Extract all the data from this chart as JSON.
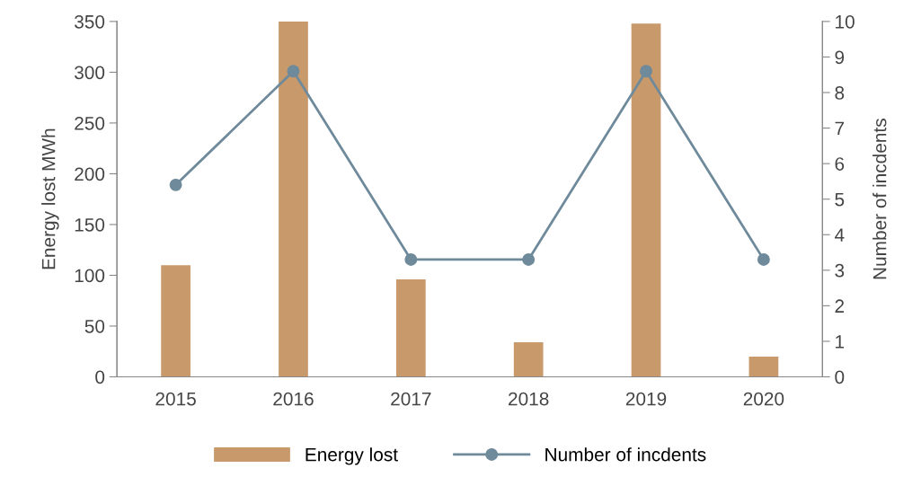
{
  "chart_data": {
    "type": "bar",
    "categories": [
      "2015",
      "2016",
      "2017",
      "2018",
      "2019",
      "2020"
    ],
    "ylabel": "Energy lost MWh",
    "y2label": "Number of incdents",
    "ylim": [
      0,
      350
    ],
    "yticks": [
      0,
      50,
      100,
      150,
      200,
      250,
      300,
      350
    ],
    "y2lim": [
      0,
      10
    ],
    "y2ticks": [
      0,
      1,
      2,
      3,
      4,
      5,
      6,
      7,
      8,
      9,
      10
    ],
    "series": [
      {
        "name": "Energy lost",
        "color": "#c8996a",
        "values": [
          110,
          350,
          96,
          34,
          348,
          20
        ]
      },
      {
        "name": "Number of incdents",
        "type": "line",
        "axis": "y2",
        "color": "#6f8a9a",
        "marker": "circle",
        "values": [
          5.4,
          8.6,
          3.3,
          3.3,
          8.6,
          3.3
        ]
      }
    ],
    "legend": "bottom",
    "grid": false
  }
}
